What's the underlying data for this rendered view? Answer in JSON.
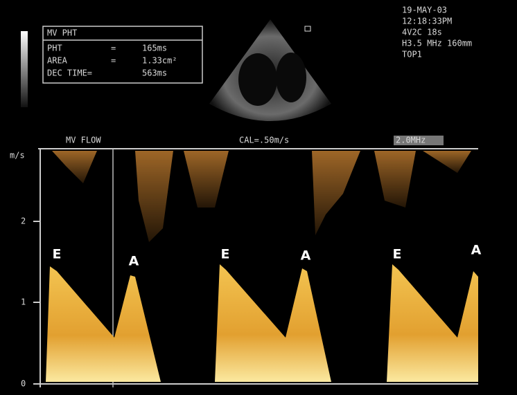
{
  "measurement": {
    "title": "MV PHT",
    "rows": [
      [
        "PHT",
        "=",
        "165ms"
      ],
      [
        "AREA",
        "=",
        "1.33cm²"
      ],
      [
        "DEC TIME=",
        "",
        "563ms"
      ]
    ]
  },
  "info": [
    "19-MAY-03",
    "12:18:33PM",
    "4V2C       18s",
    "H3.5 MHz 160mm",
    "TOP1"
  ],
  "doppler": {
    "title": "MV FLOW",
    "calibration": "CAL=.50m/s",
    "frequency": "2.0MHz",
    "unit": "m/s",
    "ticks": [
      "2",
      "1",
      "0"
    ],
    "wave_labels": [
      "E",
      "A",
      "E",
      "A",
      "E",
      "A"
    ]
  }
}
